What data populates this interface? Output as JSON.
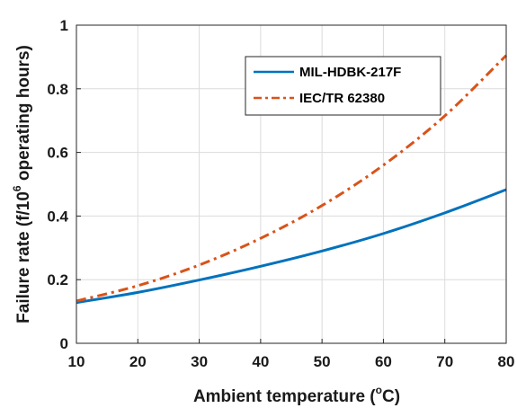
{
  "chart_data": {
    "type": "line",
    "xlabel": "Ambient temperature (",
    "xlabel_unit_sup": "o",
    "xlabel_unit": "C)",
    "ylabel": "Failure rate (f/10",
    "ylabel_sup": "6",
    "ylabel_rest": " operating hours)",
    "xlim": [
      10,
      80
    ],
    "ylim": [
      0,
      1
    ],
    "xticks": [
      "10",
      "20",
      "30",
      "40",
      "50",
      "60",
      "70",
      "80"
    ],
    "yticks": [
      "0",
      "0.2",
      "0.4",
      "0.6",
      "0.8",
      "1"
    ],
    "grid": true,
    "legend_position": "top-right",
    "x": [
      10,
      20,
      30,
      40,
      50,
      60,
      70,
      80
    ],
    "series": [
      {
        "name": "MIL-HDBK-217F",
        "color": "#0072BD",
        "style": "solid",
        "values": [
          0.128,
          0.16,
          0.199,
          0.242,
          0.29,
          0.345,
          0.41,
          0.483
        ]
      },
      {
        "name": "IEC/TR 62380",
        "color": "#D95319",
        "style": "dashdot",
        "values": [
          0.133,
          0.181,
          0.246,
          0.33,
          0.433,
          0.56,
          0.715,
          0.905
        ]
      }
    ]
  }
}
